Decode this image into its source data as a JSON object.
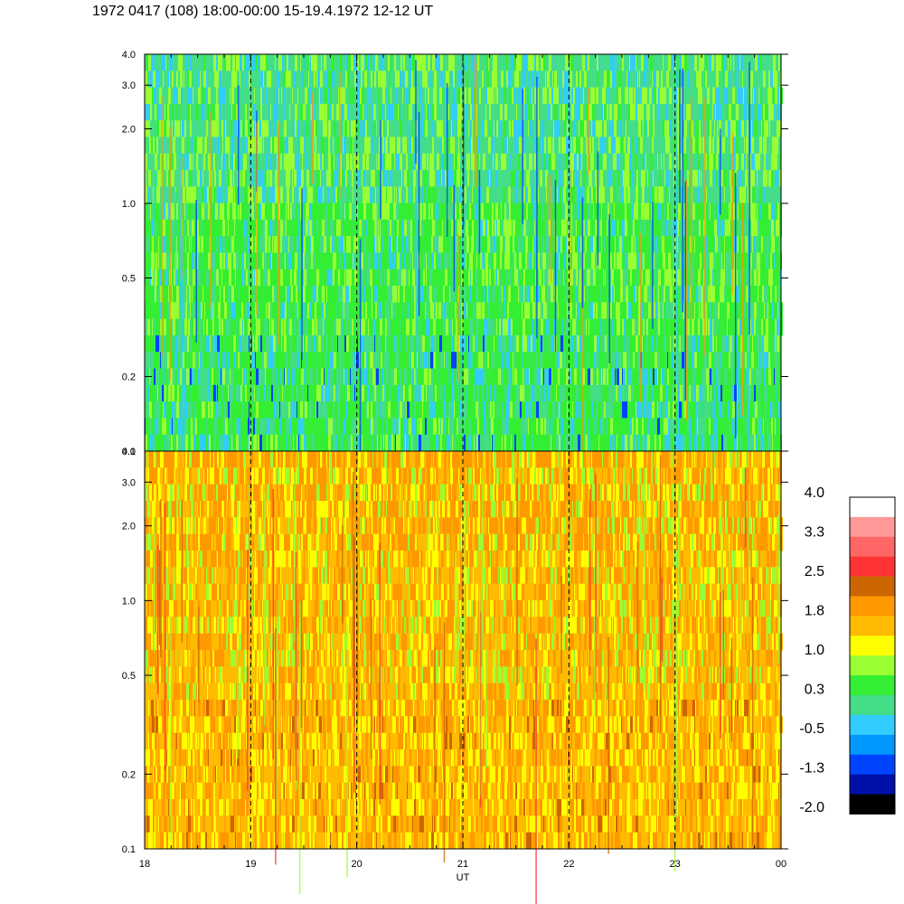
{
  "title": "1972 0417 (108) 18:00-00:00 15-19.4.1972  12-12 UT",
  "chart_data": [
    {
      "type": "heatmap",
      "panel": "upper",
      "y_scale": "log",
      "ylim": [
        0.1,
        4.0
      ],
      "y_ticks": [
        "0.1",
        "0.2",
        "0.5",
        "1.0",
        "2.0",
        "3.0",
        "4.0"
      ],
      "xlim": [
        18,
        24
      ],
      "dominant_levels": [
        "green",
        "light-green",
        "cyan-green"
      ],
      "vertical_markers": [
        19,
        20,
        21,
        22,
        23
      ]
    },
    {
      "type": "heatmap",
      "panel": "lower",
      "y_scale": "log",
      "ylim": [
        0.1,
        4.0
      ],
      "y_ticks": [
        "0.1",
        "0.2",
        "0.5",
        "1.0",
        "2.0",
        "3.0",
        "4.0"
      ],
      "xlim": [
        18,
        24
      ],
      "x_ticks": [
        "18",
        "19",
        "20",
        "21",
        "22",
        "23",
        "00"
      ],
      "xlabel": "UT",
      "dominant_levels": [
        "orange",
        "yellow-orange",
        "yellow"
      ],
      "vertical_markers": [
        19,
        20,
        21,
        22,
        23
      ]
    }
  ],
  "colorbar": {
    "labels": [
      "4.0",
      "3.3",
      "2.5",
      "1.8",
      "1.0",
      "0.3",
      "-0.5",
      "-1.3",
      "-2.0"
    ],
    "colors_top_to_bottom": [
      "#ffffff",
      "#ff9999",
      "#ff6666",
      "#ff3333",
      "#cc6600",
      "#ff9900",
      "#ffbb00",
      "#ffff00",
      "#99ff33",
      "#33ee33",
      "#44dd88",
      "#33ccff",
      "#0099ff",
      "#0044ff",
      "#0011aa",
      "#000000"
    ]
  }
}
